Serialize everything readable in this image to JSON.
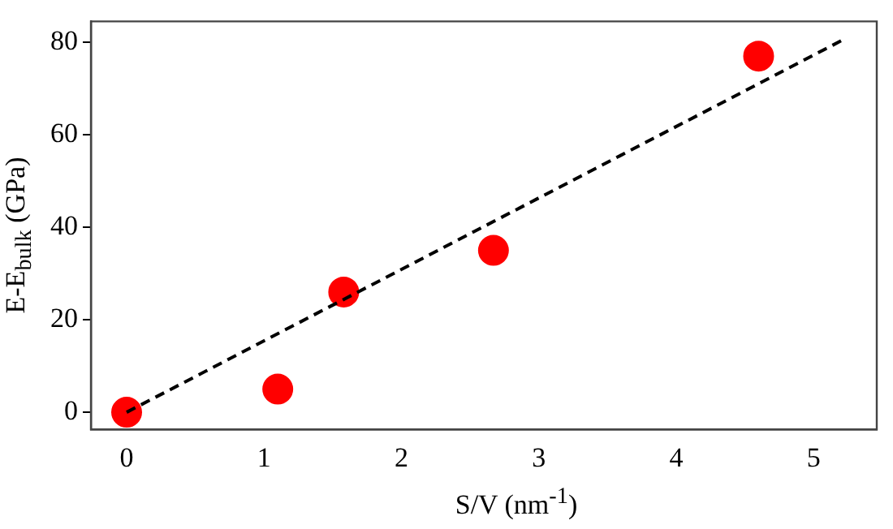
{
  "chart_data": {
    "type": "scatter",
    "xlabel": "S/V (nm$^{-1}$)",
    "ylabel": "E-E$_{bulk}$ (GPa)",
    "xlim": [
      -0.26,
      5.46
    ],
    "ylim": [
      -3.7,
      84.5
    ],
    "xticks": [
      0,
      1,
      2,
      3,
      4,
      5
    ],
    "yticks": [
      0,
      20,
      40,
      60,
      80
    ],
    "grid": false,
    "legend": false,
    "marker": "circle",
    "series": [
      {
        "type": "scatter",
        "color": "#ff0000",
        "x": [
          0,
          1.1,
          1.58,
          2.67,
          4.6
        ],
        "values": [
          0,
          5,
          26,
          35,
          77
        ]
      },
      {
        "type": "line",
        "color": "#000000",
        "line_style": "dashed",
        "marker": "none",
        "x": [
          0,
          5.2
        ],
        "values": [
          0,
          80.3
        ]
      }
    ]
  }
}
